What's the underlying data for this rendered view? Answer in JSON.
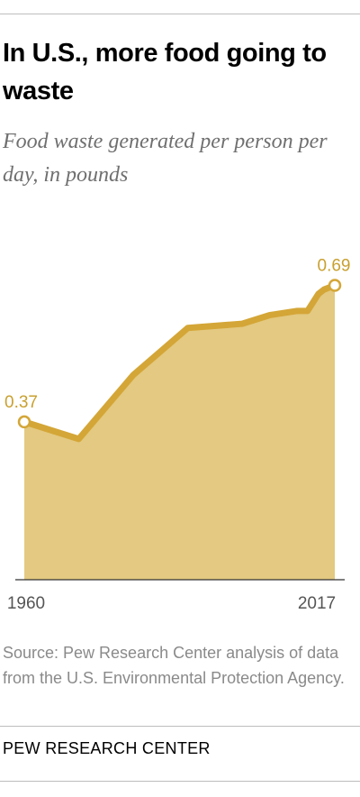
{
  "header": {
    "title": "In U.S., more food going to waste",
    "subtitle": "Food waste generated per person per day, in pounds"
  },
  "footer": {
    "source": "Source: Pew Research Center analysis of data from the U.S. Environmental Protection Agency.",
    "brand": "PEW RESEARCH CENTER"
  },
  "colors": {
    "line": "#d4a637",
    "area": "#e3c981",
    "label": "#c9a02f",
    "axis": "#333333",
    "tick_text": "#555555"
  },
  "chart_data": {
    "type": "area",
    "title": "In U.S., more food going to waste",
    "subtitle": "Food waste generated per person per day, in pounds",
    "xlabel": "",
    "ylabel": "",
    "x": [
      1960,
      1970,
      1980,
      1990,
      2000,
      2005,
      2010,
      2012,
      2013,
      2014,
      2015,
      2017
    ],
    "values": [
      0.37,
      0.33,
      0.48,
      0.59,
      0.6,
      0.62,
      0.63,
      0.63,
      0.65,
      0.67,
      0.68,
      0.69
    ],
    "x_tick_labels": [
      "1960",
      "2017"
    ],
    "ylim": [
      0,
      0.82
    ],
    "grid": false,
    "legend": "none",
    "annotations": [
      {
        "x": 1960,
        "y": 0.37,
        "text": "0.37"
      },
      {
        "x": 2017,
        "y": 0.69,
        "text": "0.69"
      }
    ]
  }
}
